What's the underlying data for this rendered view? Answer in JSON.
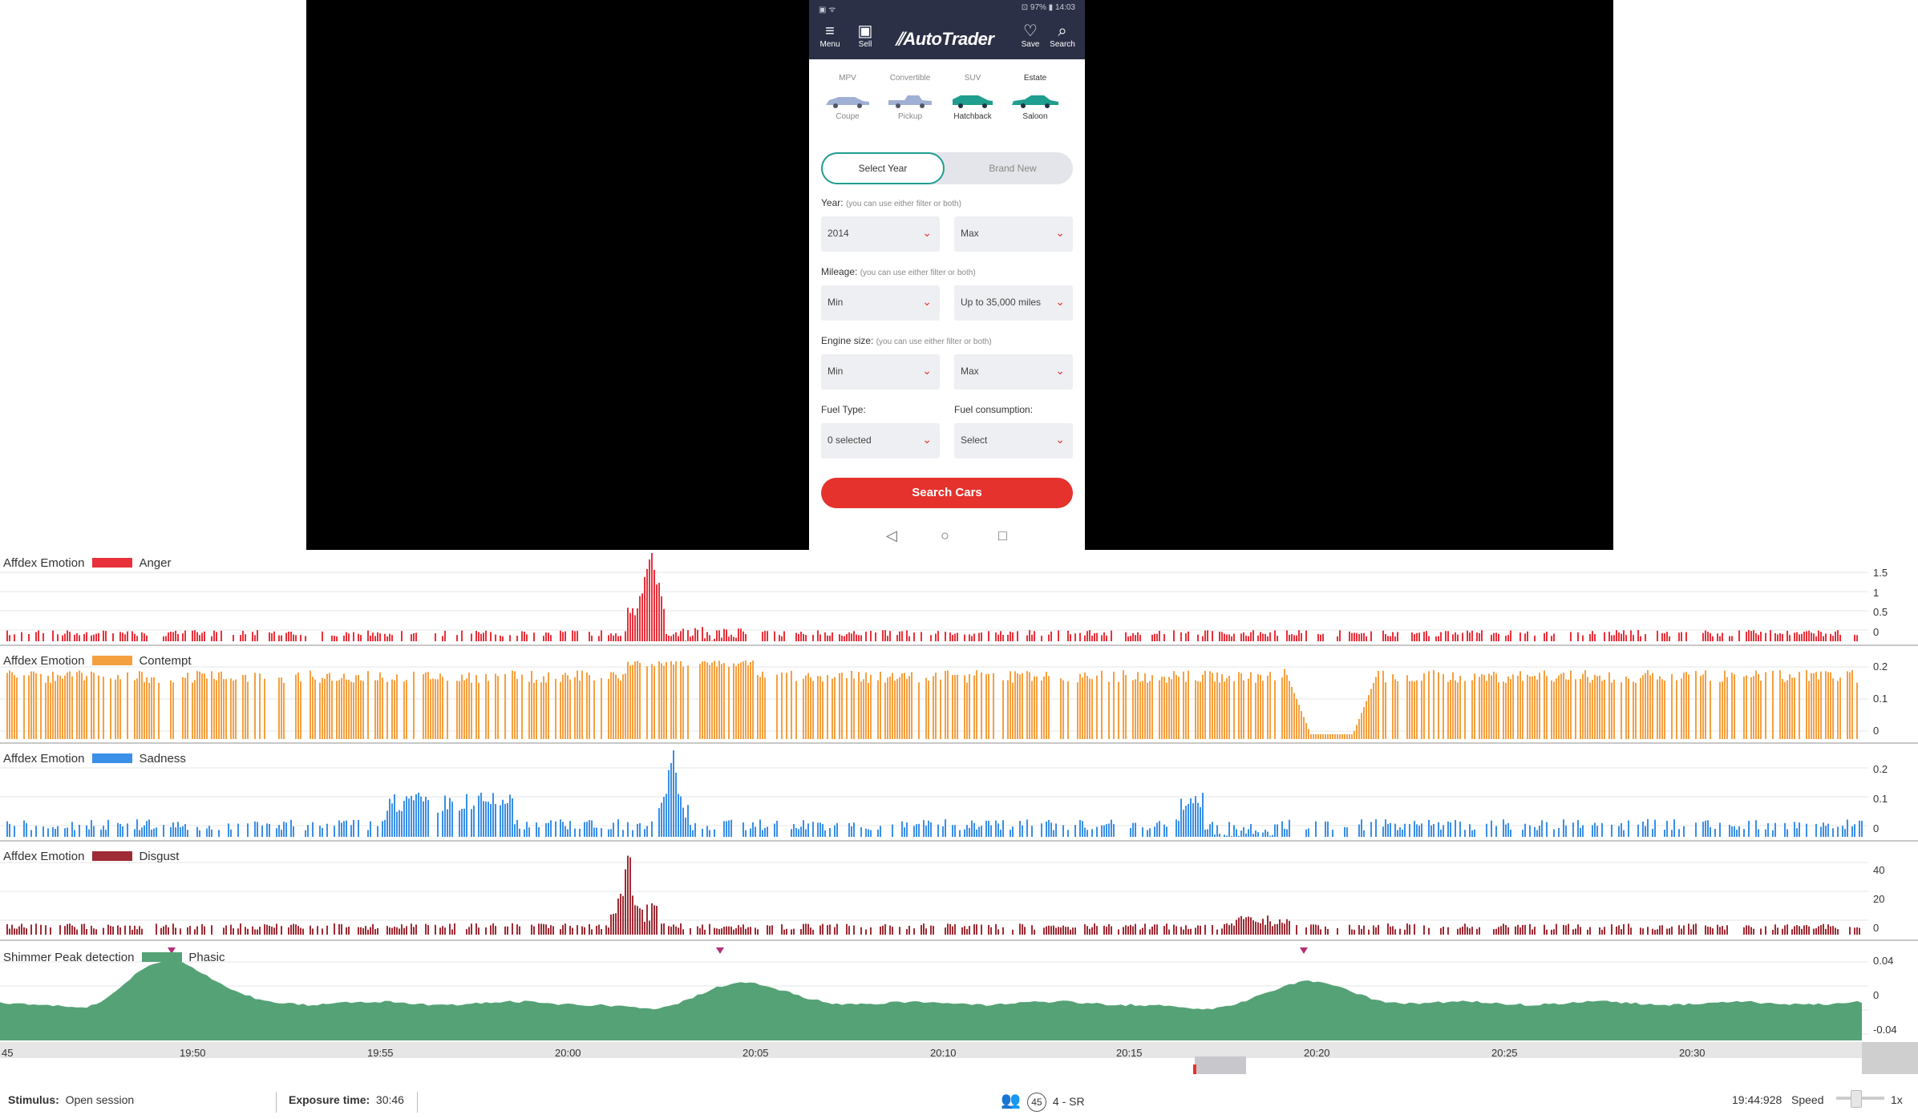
{
  "phone": {
    "status_left": "▣ ᯤ",
    "status_right": "⊡ 97% ▮ 14:03",
    "header": {
      "menu": "Menu",
      "sell": "Sell",
      "brand": "AutoTrader",
      "save": "Save",
      "search": "Search"
    },
    "body_types_row1": [
      "MPV",
      "Convertible",
      "SUV",
      "Estate"
    ],
    "body_types_row2": [
      "Coupe",
      "Pickup",
      "Hatchback",
      "Saloon"
    ],
    "toggle": {
      "option_a": "Select Year",
      "option_b": "Brand New"
    },
    "filters": {
      "year_label": "Year:",
      "year_hint": "(you can use either filter or both)",
      "year_min": "2014",
      "year_max": "Max",
      "mileage_label": "Mileage:",
      "mileage_hint": "(you can use either filter or both)",
      "mileage_min": "Min",
      "mileage_max": "Up to 35,000 miles",
      "engine_label": "Engine size:",
      "engine_hint": "(you can use either filter or both)",
      "engine_min": "Min",
      "engine_max": "Max",
      "fuel_type_label": "Fuel Type:",
      "fuel_type_value": "0 selected",
      "fuel_consumption_label": "Fuel consumption:",
      "fuel_consumption_value": "Select"
    },
    "search_button": "Search Cars",
    "nav": {
      "back": "◁",
      "home": "○",
      "recents": "□"
    }
  },
  "tracks": [
    {
      "source": "Affdex Emotion",
      "metric": "Anger",
      "color": "#e8313b",
      "yticks": [
        "1.5",
        "1",
        "0.5",
        "0"
      ]
    },
    {
      "source": "Affdex Emotion",
      "metric": "Contempt",
      "color": "#f5a040",
      "yticks": [
        "0.2",
        "0.1",
        "0"
      ]
    },
    {
      "source": "Affdex Emotion",
      "metric": "Sadness",
      "color": "#3a8fe6",
      "yticks": [
        "0.2",
        "0.1",
        "0"
      ]
    },
    {
      "source": "Affdex Emotion",
      "metric": "Disgust",
      "color": "#9e2b35",
      "yticks": [
        "40",
        "20",
        "0"
      ]
    },
    {
      "source": "Shimmer Peak detection",
      "metric": "Phasic",
      "color": "#55a276",
      "yticks": [
        "0.04",
        "0",
        "-0.04"
      ]
    }
  ],
  "timeline": {
    "ticks": [
      "45",
      "19:50",
      "19:55",
      "20:00",
      "20:05",
      "20:10",
      "20:15",
      "20:20",
      "20:25",
      "20:30"
    ]
  },
  "statusbar": {
    "stimulus_label": "Stimulus:",
    "stimulus_value": "Open session",
    "exposure_label": "Exposure time:",
    "exposure_value": "30:46",
    "respondent_count": "45",
    "respondent_name": "4 - SR",
    "time": "19:44:928",
    "speed_label": "Speed",
    "speed_value": "1x"
  }
}
